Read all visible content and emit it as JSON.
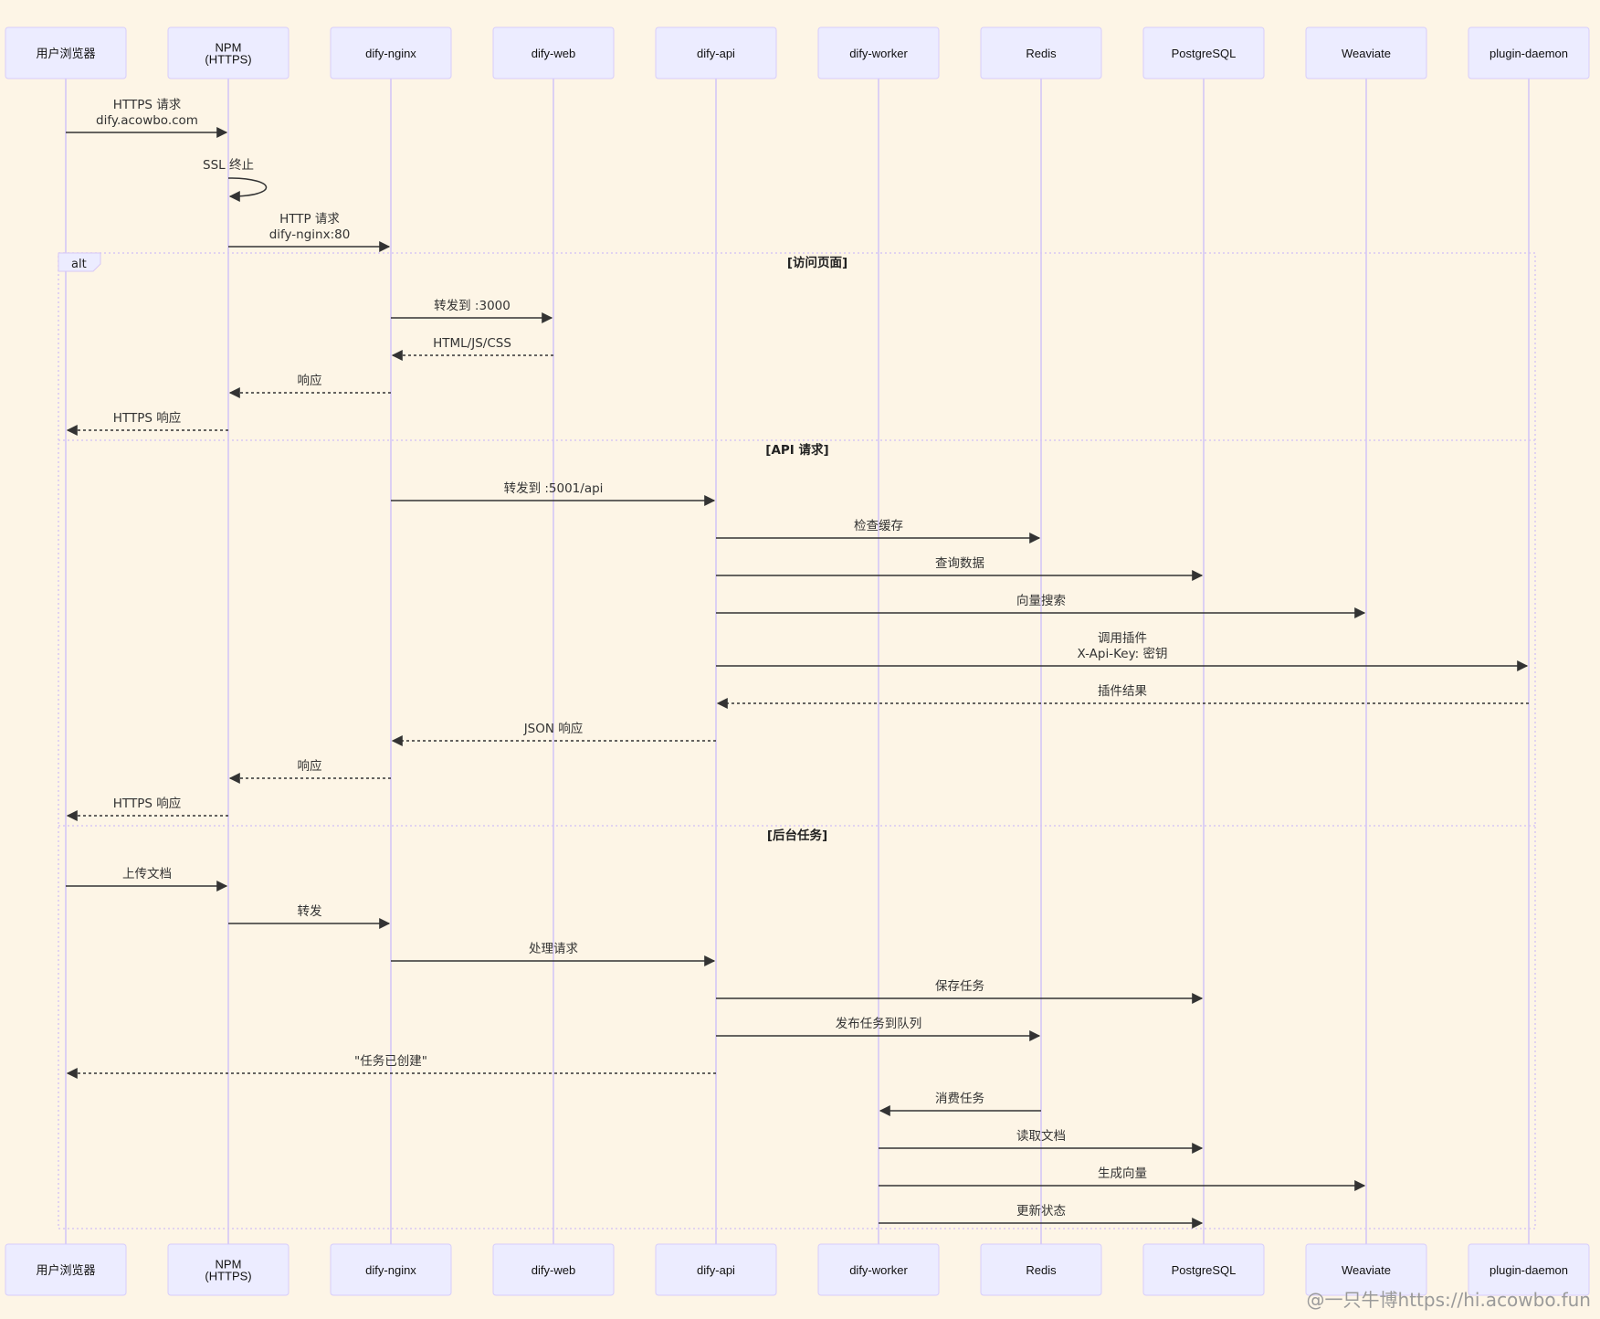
{
  "actors": [
    {
      "label": [
        "用户浏览器"
      ]
    },
    {
      "label": [
        "NPM",
        "(HTTPS)"
      ]
    },
    {
      "label": [
        "dify-nginx"
      ]
    },
    {
      "label": [
        "dify-web"
      ]
    },
    {
      "label": [
        "dify-api"
      ]
    },
    {
      "label": [
        "dify-worker"
      ]
    },
    {
      "label": [
        "Redis"
      ]
    },
    {
      "label": [
        "PostgreSQL"
      ]
    },
    {
      "label": [
        "Weaviate"
      ]
    },
    {
      "label": [
        "plugin-daemon"
      ]
    }
  ],
  "messages": [
    {
      "from": 0,
      "to": 1,
      "label": [
        "HTTPS 请求",
        "dify.acowbo.com"
      ],
      "style": "solid"
    },
    {
      "from": 1,
      "to": 1,
      "label": [
        "SSL 终止"
      ],
      "style": "self"
    },
    {
      "from": 1,
      "to": 2,
      "label": [
        "HTTP 请求",
        "dify-nginx:80"
      ],
      "style": "solid"
    },
    {
      "from": 2,
      "to": 3,
      "label": [
        "转发到 :3000"
      ],
      "style": "solid"
    },
    {
      "from": 3,
      "to": 2,
      "label": [
        "HTML/JS/CSS"
      ],
      "style": "dashed"
    },
    {
      "from": 2,
      "to": 1,
      "label": [
        "响应"
      ],
      "style": "dashed"
    },
    {
      "from": 1,
      "to": 0,
      "label": [
        "HTTPS 响应"
      ],
      "style": "dashed"
    },
    {
      "from": 2,
      "to": 4,
      "label": [
        "转发到 :5001/api"
      ],
      "style": "solid"
    },
    {
      "from": 4,
      "to": 6,
      "label": [
        "检查缓存"
      ],
      "style": "solid"
    },
    {
      "from": 4,
      "to": 7,
      "label": [
        "查询数据"
      ],
      "style": "solid"
    },
    {
      "from": 4,
      "to": 8,
      "label": [
        "向量搜索"
      ],
      "style": "solid"
    },
    {
      "from": 4,
      "to": 9,
      "label": [
        "调用插件",
        "X-Api-Key: 密钥"
      ],
      "style": "solid"
    },
    {
      "from": 9,
      "to": 4,
      "label": [
        "插件结果"
      ],
      "style": "dashed"
    },
    {
      "from": 4,
      "to": 2,
      "label": [
        "JSON 响应"
      ],
      "style": "dashed"
    },
    {
      "from": 2,
      "to": 1,
      "label": [
        "响应"
      ],
      "style": "dashed"
    },
    {
      "from": 1,
      "to": 0,
      "label": [
        "HTTPS 响应"
      ],
      "style": "dashed"
    },
    {
      "from": 0,
      "to": 1,
      "label": [
        "上传文档"
      ],
      "style": "solid"
    },
    {
      "from": 1,
      "to": 2,
      "label": [
        "转发"
      ],
      "style": "solid"
    },
    {
      "from": 2,
      "to": 4,
      "label": [
        "处理请求"
      ],
      "style": "solid"
    },
    {
      "from": 4,
      "to": 7,
      "label": [
        "保存任务"
      ],
      "style": "solid"
    },
    {
      "from": 4,
      "to": 6,
      "label": [
        "发布任务到队列"
      ],
      "style": "solid"
    },
    {
      "from": 4,
      "to": 0,
      "label": [
        "\"任务已创建\""
      ],
      "style": "dashed"
    },
    {
      "from": 6,
      "to": 5,
      "label": [
        "消费任务"
      ],
      "style": "solid"
    },
    {
      "from": 5,
      "to": 7,
      "label": [
        "读取文档"
      ],
      "style": "solid"
    },
    {
      "from": 5,
      "to": 8,
      "label": [
        "生成向量"
      ],
      "style": "solid"
    },
    {
      "from": 5,
      "to": 7,
      "label": [
        "更新状态"
      ],
      "style": "solid"
    }
  ],
  "frame": {
    "label": "alt",
    "sections": [
      "[访问页面]",
      "[API 请求]",
      "[后台任务]"
    ]
  },
  "watermark": "@一只牛博https://hi.acowbo.fun",
  "colors": {
    "background": "#fdf5e6",
    "actor_fill": "#ececff",
    "actor_stroke": "#d7cdfb",
    "lifeline": "#dcd0f3",
    "message": "#333333"
  }
}
